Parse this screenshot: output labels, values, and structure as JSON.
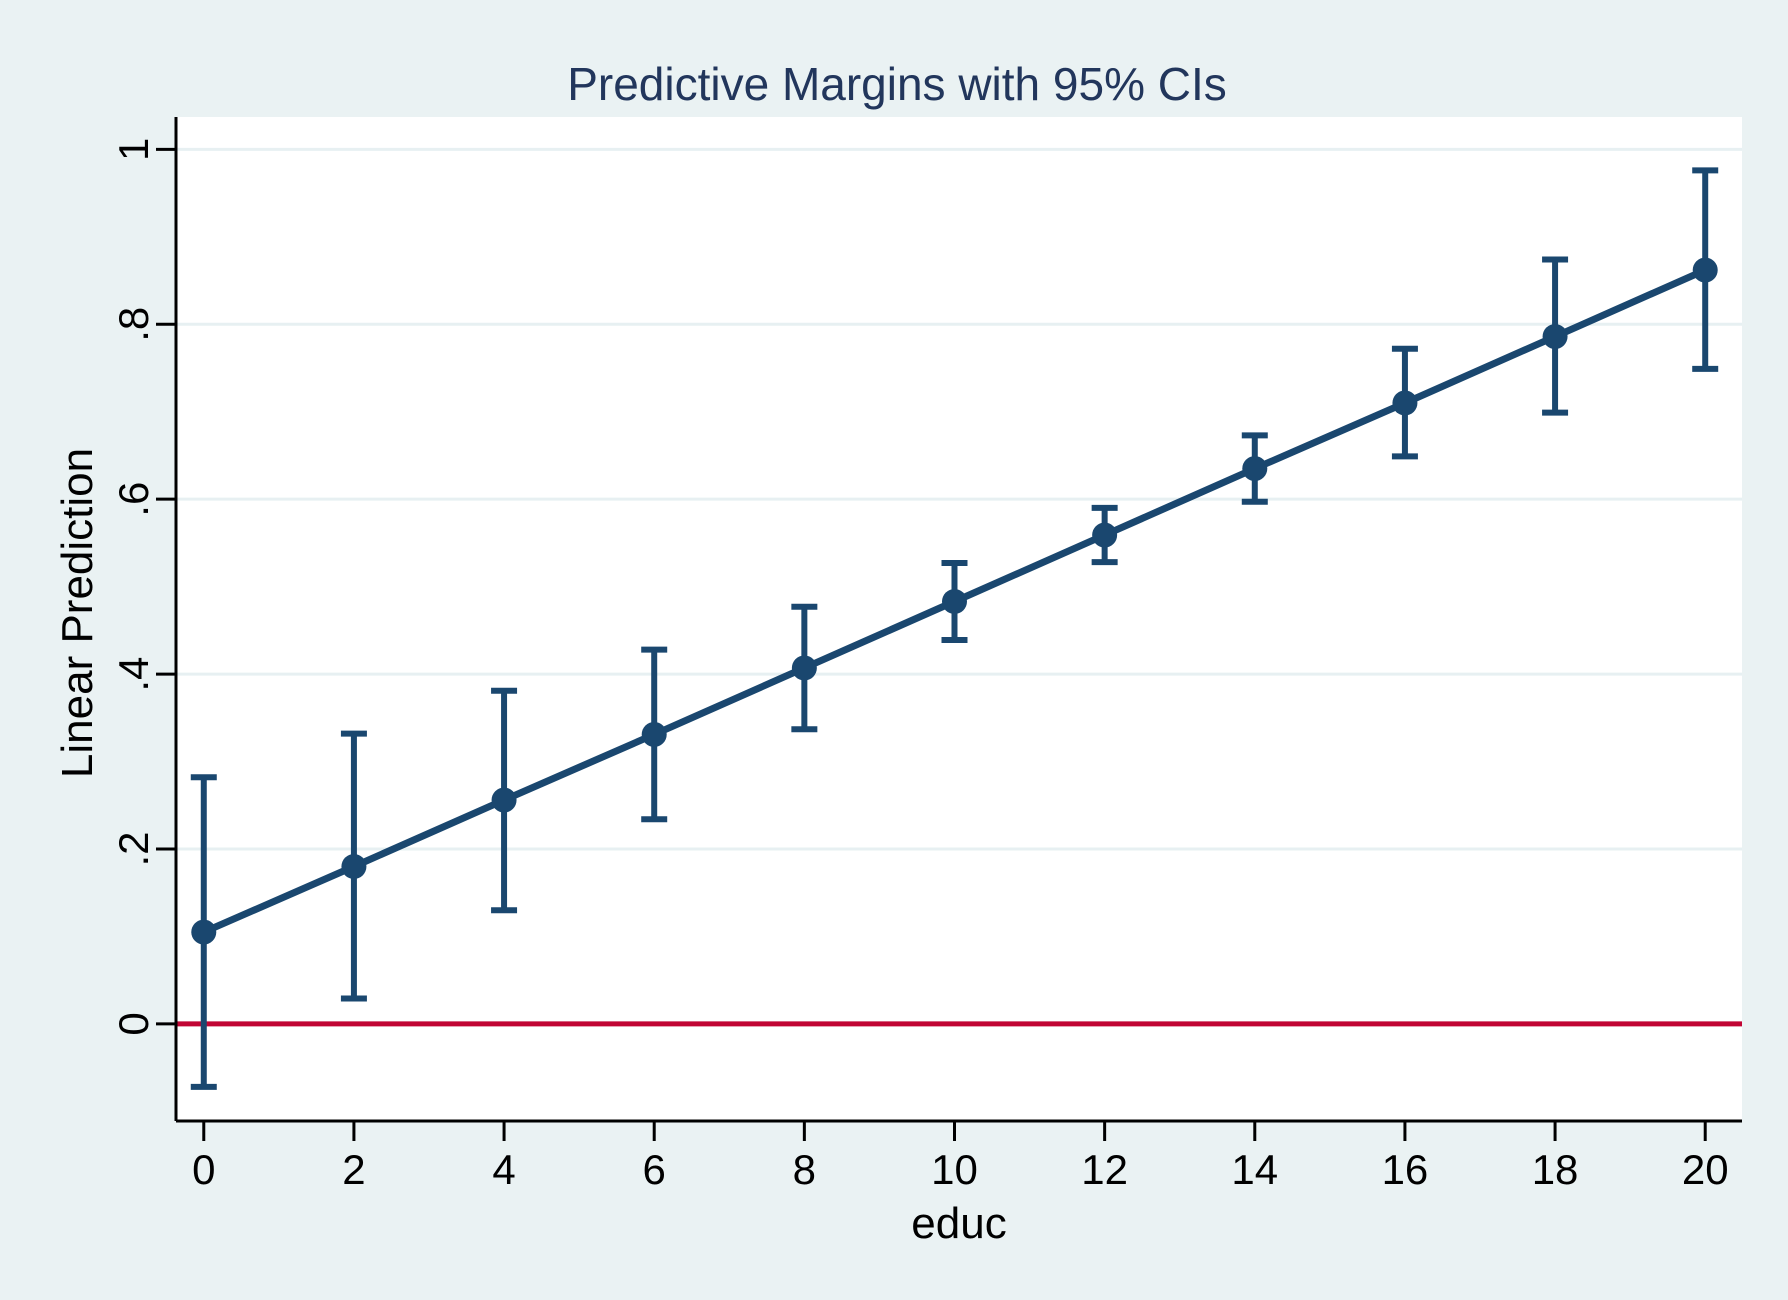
{
  "figure": {
    "title": "Predictive Margins with 95% CIs",
    "xlabel": "educ",
    "ylabel": "Linear Prediction"
  },
  "chart_data": {
    "type": "line",
    "title": "Predictive Margins with 95% CIs",
    "xlabel": "educ",
    "ylabel": "Linear Prediction",
    "x": [
      0,
      2,
      4,
      6,
      8,
      10,
      12,
      14,
      16,
      18,
      20
    ],
    "series": [
      {
        "name": "Linear Prediction",
        "values": [
          0.105,
          0.18,
          0.256,
          0.331,
          0.407,
          0.483,
          0.559,
          0.635,
          0.71,
          0.786,
          0.862
        ],
        "ci_lower": [
          -0.072,
          0.029,
          0.13,
          0.234,
          0.337,
          0.439,
          0.528,
          0.597,
          0.649,
          0.699,
          0.749
        ],
        "ci_upper": [
          0.282,
          0.332,
          0.381,
          0.428,
          0.477,
          0.527,
          0.59,
          0.673,
          0.772,
          0.874,
          0.976
        ]
      }
    ],
    "reference_line_y": 0,
    "x_ticks": [
      0,
      2,
      4,
      6,
      8,
      10,
      12,
      14,
      16,
      18,
      20
    ],
    "x_tick_labels": [
      "0",
      "2",
      "4",
      "6",
      "8",
      "10",
      "12",
      "14",
      "16",
      "18",
      "20"
    ],
    "y_ticks": [
      0,
      0.2,
      0.4,
      0.6,
      0.8,
      1
    ],
    "y_tick_labels": [
      "0",
      ".2",
      ".4",
      ".6",
      ".8",
      "1"
    ],
    "xlim": [
      -0.37,
      20.49
    ],
    "ylim": [
      -0.111,
      1.037
    ],
    "grid": true,
    "legend_position": "none",
    "colors": {
      "series": "#1a476f",
      "reference_line": "#c10534",
      "background": "#eaf2f3",
      "plot_background": "#ffffff",
      "gridline": "#e7f0f2",
      "axis": "#000000",
      "title": "#22365c",
      "tick_text": "#000000"
    }
  }
}
